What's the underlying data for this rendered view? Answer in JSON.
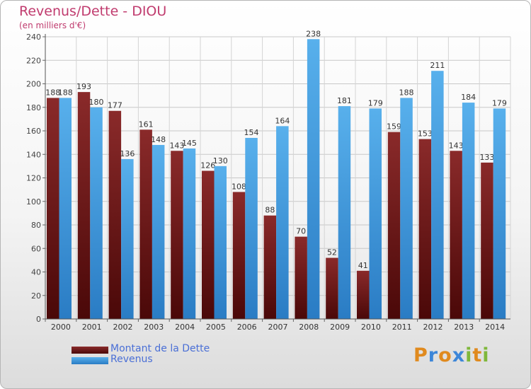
{
  "header": {
    "title": "Revenus/Dette - DIOU",
    "subtitle": "(en milliers d'€)"
  },
  "legend": {
    "items": [
      {
        "label": "Montant de la Dette",
        "color": "#7a1f1f"
      },
      {
        "label": "Revenus",
        "color": "#3d9ade"
      }
    ]
  },
  "logo": {
    "text": "Proxiti",
    "letters": [
      {
        "ch": "P",
        "color": "#e08a1e"
      },
      {
        "ch": "r",
        "color": "#3c86d8"
      },
      {
        "ch": "o",
        "color": "#e08a1e"
      },
      {
        "ch": "x",
        "color": "#3c86d8"
      },
      {
        "ch": "i",
        "color": "#7fb83a"
      },
      {
        "ch": "t",
        "color": "#e08a1e"
      },
      {
        "ch": "i",
        "color": "#7fb83a"
      }
    ]
  },
  "chart_data": {
    "type": "bar",
    "categories": [
      "2000",
      "2001",
      "2002",
      "2003",
      "2004",
      "2005",
      "2006",
      "2007",
      "2008",
      "2009",
      "2010",
      "2011",
      "2012",
      "2013",
      "2014"
    ],
    "series": [
      {
        "name": "Montant de la Dette",
        "color": "#7a1f1f",
        "values": [
          188,
          193,
          177,
          161,
          143,
          126,
          108,
          88,
          70,
          52,
          41,
          159,
          153,
          143,
          133
        ]
      },
      {
        "name": "Revenus",
        "color": "#3d9ade",
        "values": [
          188,
          180,
          136,
          148,
          145,
          130,
          154,
          164,
          238,
          181,
          179,
          188,
          211,
          184,
          179
        ]
      }
    ],
    "yticks": [
      0,
      20,
      40,
      60,
      80,
      100,
      120,
      140,
      160,
      180,
      200,
      220,
      240
    ],
    "ylim": [
      0,
      240
    ],
    "grid": true
  }
}
